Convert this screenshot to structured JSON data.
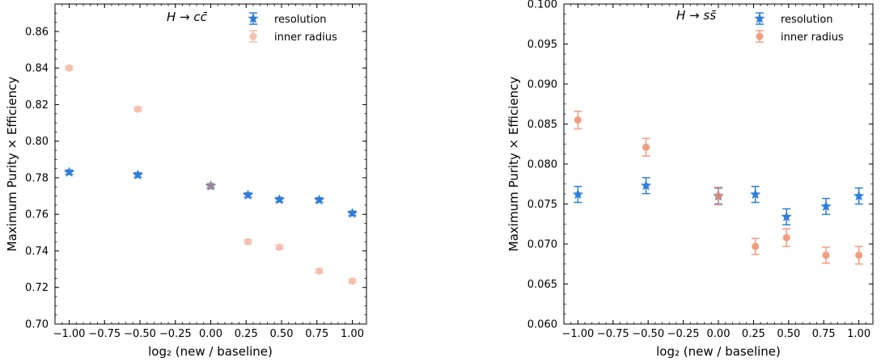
{
  "colors": {
    "resolution": "#2f7ed8",
    "inner_radius": "#f08c6c",
    "axis": "#000000"
  },
  "chart_data": [
    {
      "type": "scatter",
      "annotation": "H → cc̄",
      "xlabel": "log₂ (new / baseline)",
      "ylabel": "Maximum Purity × Efficiency",
      "xlim": [
        -1.1,
        1.1
      ],
      "ylim": [
        0.7,
        0.875
      ],
      "xticks": [
        "−1.00",
        "−0.75",
        "−0.50",
        "−0.25",
        "0.00",
        "0.25",
        "0.50",
        "0.75",
        "1.00"
      ],
      "yticks": [
        "0.70",
        "0.72",
        "0.74",
        "0.76",
        "0.78",
        "0.80",
        "0.82",
        "0.84",
        "0.86"
      ],
      "legend_position": "top-right",
      "grid": false,
      "series": [
        {
          "name": "resolution",
          "marker": "star",
          "alpha": 1.0,
          "points": [
            {
              "x": -1.0,
              "y": 0.783,
              "err": 0.0012
            },
            {
              "x": -0.515,
              "y": 0.7815,
              "err": 0.0012
            },
            {
              "x": 0.0,
              "y": 0.7755,
              "err": 0.0012
            },
            {
              "x": 0.263,
              "y": 0.7705,
              "err": 0.0012
            },
            {
              "x": 0.485,
              "y": 0.768,
              "err": 0.0012
            },
            {
              "x": 0.766,
              "y": 0.7678,
              "err": 0.0012
            },
            {
              "x": 1.0,
              "y": 0.7605,
              "err": 0.0012
            }
          ]
        },
        {
          "name": "inner radius",
          "marker": "circle",
          "alpha": 0.55,
          "points": [
            {
              "x": -1.0,
              "y": 0.84,
              "err": 0.001
            },
            {
              "x": -0.515,
              "y": 0.8175,
              "err": 0.001
            },
            {
              "x": 0.0,
              "y": 0.7755,
              "err": 0.001
            },
            {
              "x": 0.263,
              "y": 0.745,
              "err": 0.001
            },
            {
              "x": 0.485,
              "y": 0.742,
              "err": 0.001
            },
            {
              "x": 0.766,
              "y": 0.729,
              "err": 0.001
            },
            {
              "x": 1.0,
              "y": 0.7235,
              "err": 0.001
            }
          ]
        }
      ]
    },
    {
      "type": "scatter",
      "annotation": "H → ss̄",
      "xlabel": "log₂ (new / baseline)",
      "ylabel": "Maximum Purity × Efficiency",
      "xlim": [
        -1.1,
        1.1
      ],
      "ylim": [
        0.06,
        0.1
      ],
      "xticks": [
        "−1.00",
        "−0.75",
        "−0.50",
        "−0.25",
        "0.00",
        "0.25",
        "0.50",
        "0.75",
        "1.00"
      ],
      "yticks": [
        "0.060",
        "0.065",
        "0.070",
        "0.075",
        "0.080",
        "0.085",
        "0.090",
        "0.095",
        "0.100"
      ],
      "legend_position": "top-right",
      "grid": false,
      "series": [
        {
          "name": "resolution",
          "marker": "star",
          "alpha": 1.0,
          "points": [
            {
              "x": -1.0,
              "y": 0.0762,
              "err": 0.001
            },
            {
              "x": -0.515,
              "y": 0.0773,
              "err": 0.001
            },
            {
              "x": 0.0,
              "y": 0.076,
              "err": 0.001
            },
            {
              "x": 0.263,
              "y": 0.0762,
              "err": 0.001
            },
            {
              "x": 0.485,
              "y": 0.0734,
              "err": 0.001
            },
            {
              "x": 0.766,
              "y": 0.0747,
              "err": 0.001
            },
            {
              "x": 1.0,
              "y": 0.076,
              "err": 0.001
            }
          ]
        },
        {
          "name": "inner radius",
          "marker": "circle",
          "alpha": 0.85,
          "points": [
            {
              "x": -1.0,
              "y": 0.0855,
              "err": 0.0011
            },
            {
              "x": -0.515,
              "y": 0.0821,
              "err": 0.0011
            },
            {
              "x": 0.0,
              "y": 0.076,
              "err": 0.0011
            },
            {
              "x": 0.263,
              "y": 0.0697,
              "err": 0.001
            },
            {
              "x": 0.485,
              "y": 0.0708,
              "err": 0.0011
            },
            {
              "x": 0.766,
              "y": 0.0686,
              "err": 0.001
            },
            {
              "x": 1.0,
              "y": 0.0686,
              "err": 0.0011
            }
          ]
        }
      ]
    }
  ]
}
